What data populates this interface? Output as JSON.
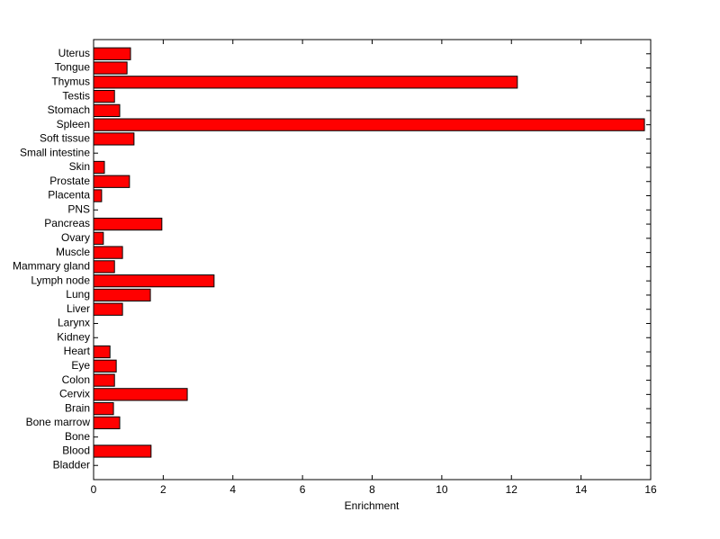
{
  "chart_data": {
    "type": "barh",
    "xlabel": "Enrichment",
    "categories": [
      "Bladder",
      "Blood",
      "Bone",
      "Bone marrow",
      "Brain",
      "Cervix",
      "Colon",
      "Eye",
      "Heart",
      "Kidney",
      "Larynx",
      "Liver",
      "Lung",
      "Lymph node",
      "Mammary gland",
      "Muscle",
      "Ovary",
      "Pancreas",
      "PNS",
      "Placenta",
      "Prostate",
      "Skin",
      "Small intestine",
      "Soft tissue",
      "Spleen",
      "Stomach",
      "Testis",
      "Thymus",
      "Tongue",
      "Uterus"
    ],
    "values": [
      0,
      1.65,
      0,
      0.75,
      0.57,
      2.69,
      0.6,
      0.65,
      0.47,
      0,
      0,
      0.83,
      1.63,
      3.46,
      0.6,
      0.83,
      0.28,
      1.96,
      0,
      0.23,
      1.03,
      0.31,
      0,
      1.16,
      15.82,
      0.75,
      0.6,
      12.17,
      0.96,
      1.06
    ],
    "color": "#ff0000",
    "xlim": [
      0,
      16
    ],
    "xticks": [
      0,
      2,
      4,
      6,
      8,
      10,
      12,
      14,
      16
    ]
  }
}
